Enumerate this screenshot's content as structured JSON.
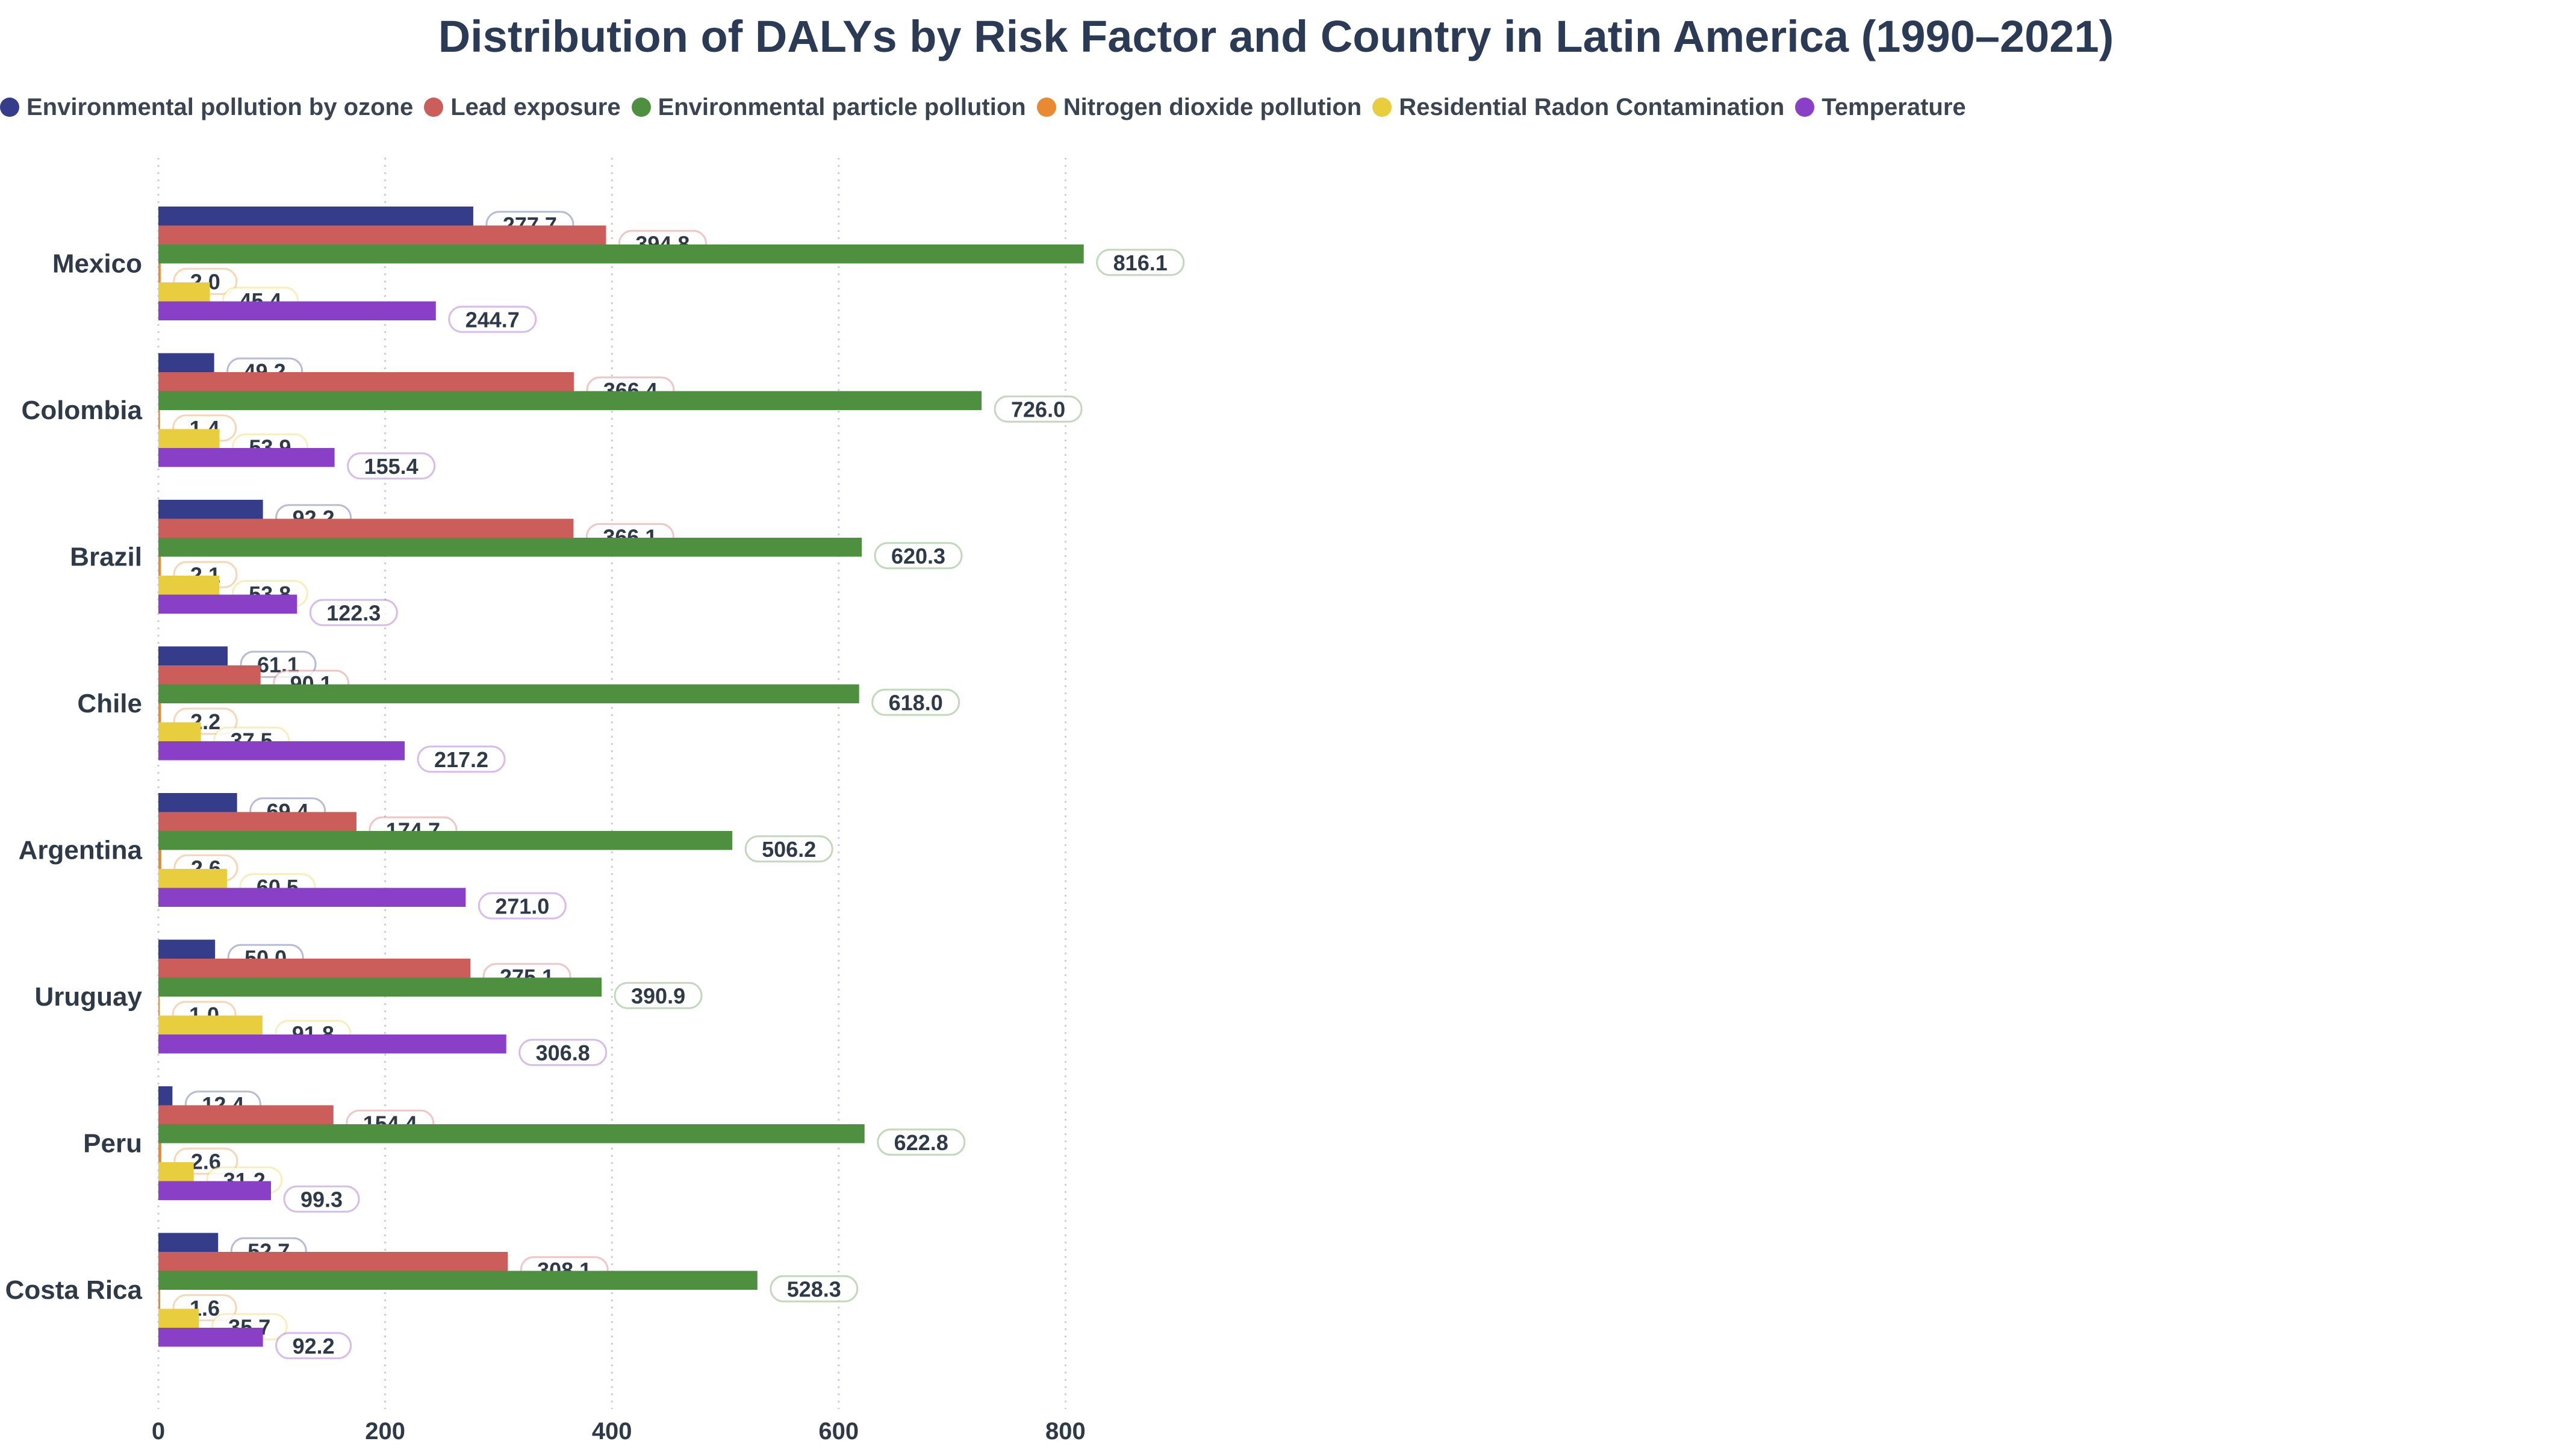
{
  "title": "Distribution of DALYs by Risk Factor and Country in Latin America (1990–2021)",
  "chart_data": {
    "type": "bar",
    "orientation": "horizontal",
    "title": "Distribution of DALYs by Risk Factor and Country in Latin America (1990–2021)",
    "xlabel": "",
    "ylabel": "",
    "xlim": [
      0,
      830
    ],
    "x_ticks": [
      0,
      200,
      400,
      600,
      800
    ],
    "grid": "vertical dotted",
    "legend_position": "top-left",
    "categories": [
      "Mexico",
      "Colombia",
      "Brazil",
      "Chile",
      "Argentina",
      "Uruguay",
      "Peru",
      "Costa Rica"
    ],
    "series": [
      {
        "name": "Environmental pollution by ozone",
        "color": "#353c8a",
        "values": [
          277.7,
          49.2,
          92.2,
          61.1,
          69.4,
          50.0,
          12.4,
          52.7
        ]
      },
      {
        "name": "Lead exposure",
        "color": "#cb5d5a",
        "values": [
          394.8,
          366.4,
          366.1,
          90.1,
          174.7,
          275.1,
          154.4,
          308.1
        ]
      },
      {
        "name": "Environmental particle pollution",
        "color": "#4f8f40",
        "values": [
          816.1,
          726.0,
          620.3,
          618.0,
          506.2,
          390.9,
          622.8,
          528.3
        ]
      },
      {
        "name": "Nitrogen dioxide pollution",
        "color": "#e98a33",
        "values": [
          2.0,
          1.4,
          2.1,
          2.2,
          2.6,
          1.0,
          2.6,
          1.6
        ]
      },
      {
        "name": "Residential Radon Contamination",
        "color": "#e8cd3f",
        "values": [
          45.4,
          53.9,
          53.8,
          37.5,
          60.5,
          91.8,
          31.2,
          35.7
        ]
      },
      {
        "name": "Temperature",
        "color": "#8a3fc7",
        "values": [
          244.7,
          155.4,
          122.3,
          217.2,
          271.0,
          306.8,
          99.3,
          92.2
        ]
      }
    ]
  }
}
